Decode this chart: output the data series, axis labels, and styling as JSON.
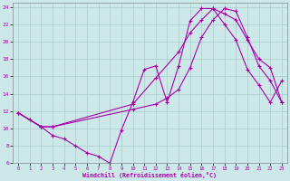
{
  "xlabel": "Windchill (Refroidissement éolien,°C)",
  "background_color": "#cce8e8",
  "grid_color": "#aacccc",
  "line_color": "#aa00aa",
  "xlim": [
    -0.5,
    23.5
  ],
  "ylim": [
    6,
    24.5
  ],
  "xticks": [
    0,
    1,
    2,
    3,
    4,
    5,
    6,
    7,
    8,
    9,
    10,
    11,
    12,
    13,
    14,
    15,
    16,
    17,
    18,
    19,
    20,
    21,
    22,
    23
  ],
  "yticks": [
    6,
    8,
    10,
    12,
    14,
    16,
    18,
    20,
    22,
    24
  ],
  "line1_x": [
    0,
    1,
    2,
    3,
    4,
    5,
    6,
    7,
    8,
    9,
    10,
    11,
    12,
    13,
    14,
    15,
    16,
    17,
    18,
    19,
    20,
    21,
    22,
    23
  ],
  "line1_y": [
    11.8,
    11.0,
    10.2,
    9.2,
    8.8,
    8.0,
    7.2,
    6.8,
    6.0,
    9.8,
    13.0,
    16.8,
    17.2,
    13.0,
    17.2,
    22.4,
    23.8,
    23.8,
    22.0,
    20.2,
    16.8,
    15.0,
    13.0,
    15.5
  ],
  "line2_x": [
    0,
    2,
    3,
    10,
    12,
    14,
    15,
    16,
    17,
    18,
    19,
    20,
    21,
    22,
    23
  ],
  "line2_y": [
    11.8,
    10.2,
    10.2,
    12.8,
    15.8,
    18.8,
    21.0,
    22.5,
    23.8,
    23.2,
    22.5,
    20.2,
    18.0,
    17.0,
    13.0
  ],
  "line3_x": [
    0,
    2,
    3,
    10,
    12,
    13,
    14,
    15,
    16,
    17,
    18,
    19,
    20,
    21,
    22,
    23
  ],
  "line3_y": [
    11.8,
    10.2,
    10.2,
    12.2,
    12.8,
    13.5,
    14.5,
    17.0,
    20.5,
    22.5,
    23.8,
    23.5,
    20.5,
    17.2,
    15.5,
    13.0
  ]
}
